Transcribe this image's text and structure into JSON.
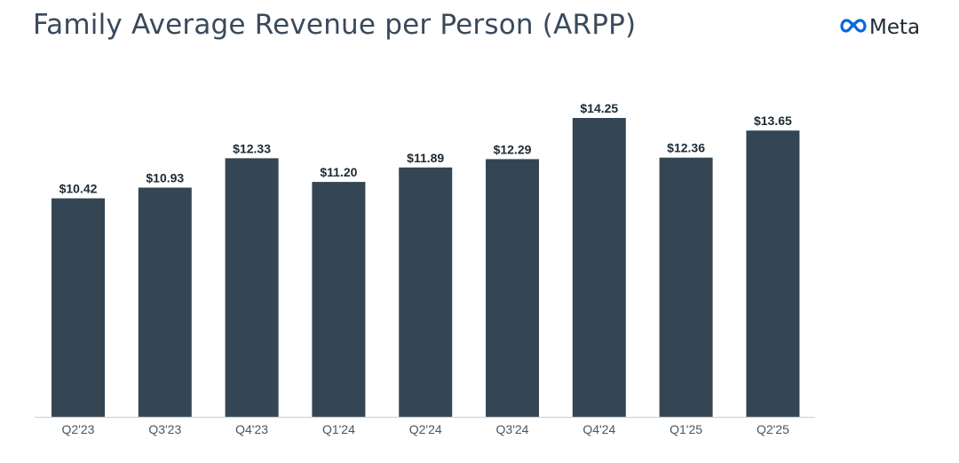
{
  "header": {
    "title": "Family Average Revenue per Person (ARPP)",
    "brand_name": "Meta",
    "brand_icon": "meta-infinity-logo-icon",
    "brand_color": "#0668e1"
  },
  "chart_data": {
    "type": "bar",
    "title": "Family Average Revenue per Person (ARPP)",
    "categories": [
      "Q2'23",
      "Q3'23",
      "Q4'23",
      "Q1'24",
      "Q2'24",
      "Q3'24",
      "Q4'24",
      "Q1'25",
      "Q2'25"
    ],
    "values": [
      10.42,
      10.93,
      12.33,
      11.2,
      11.89,
      12.29,
      14.25,
      12.36,
      13.65
    ],
    "data_labels": [
      "$10.42",
      "$10.93",
      "$12.33",
      "$11.20",
      "$11.89",
      "$12.29",
      "$14.25",
      "$12.36",
      "$13.65"
    ],
    "xlabel": "",
    "ylabel": "",
    "ylim": [
      0,
      14.25
    ],
    "grid": false,
    "legend": "none",
    "bar_color": "#344653",
    "axis_color": "#d0d4d8",
    "label_color": "#1c2b33",
    "tick_color": "#4a5560"
  }
}
